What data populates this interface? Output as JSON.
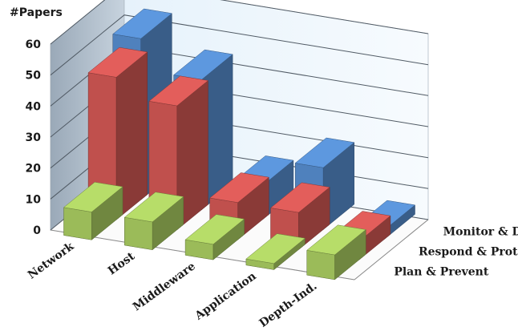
{
  "chart_data": {
    "type": "bar",
    "subtype": "3d-clustered-column",
    "ylabel": "#Papers",
    "ylim": [
      0,
      60
    ],
    "yticks": [
      0,
      10,
      20,
      30,
      40,
      50,
      60
    ],
    "grid": true,
    "categories": [
      "Network",
      "Host",
      "Middleware",
      "Application",
      "Depth-Ind."
    ],
    "series": [
      {
        "name": "Plan & Prevent",
        "values": [
          9,
          9,
          5,
          2,
          8
        ],
        "color": "#9bbb59"
      },
      {
        "name": "Respond & Protect",
        "values": [
          46,
          40,
          12,
          12,
          6
        ],
        "color": "#c0504d"
      },
      {
        "name": "Monitor & Detect",
        "values": [
          52,
          42,
          11,
          20,
          3
        ],
        "color": "#4f81bd"
      }
    ]
  }
}
